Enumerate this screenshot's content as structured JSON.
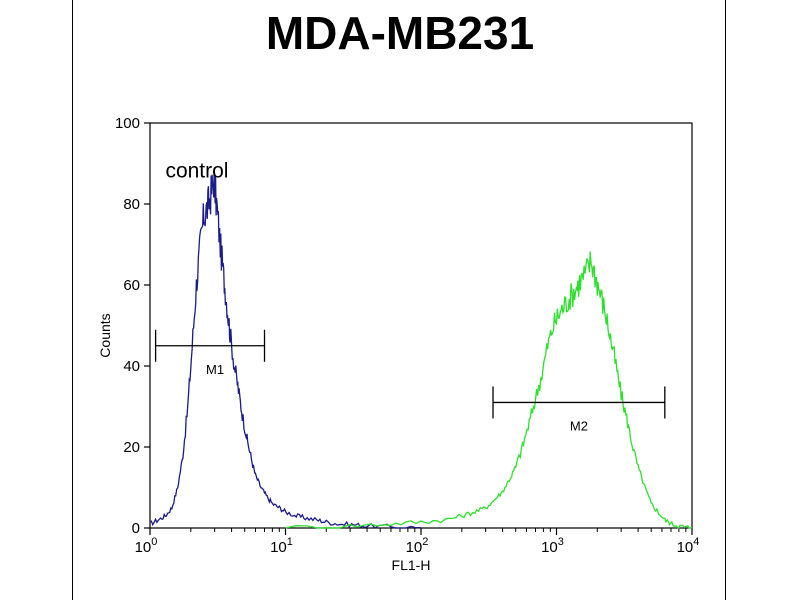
{
  "title": "MDA-MB231",
  "chart_data": {
    "type": "line",
    "title": "MDA-MB231",
    "xlabel": "FL1-H",
    "ylabel": "Counts",
    "xscale": "log",
    "xlim": [
      1,
      10000
    ],
    "ylim": [
      0,
      100
    ],
    "yticks": [
      0,
      20,
      40,
      60,
      80,
      100
    ],
    "xticks": [
      {
        "value": 1,
        "base": "10",
        "exp": "0"
      },
      {
        "value": 10,
        "base": "10",
        "exp": "1"
      },
      {
        "value": 100,
        "base": "10",
        "exp": "2"
      },
      {
        "value": 1000,
        "base": "10",
        "exp": "3"
      },
      {
        "value": 10000,
        "base": "10",
        "exp": "4"
      }
    ],
    "grid": false,
    "legend": "none",
    "annotations": [
      {
        "text": "control",
        "x": 1.3,
        "y": 88
      }
    ],
    "markers": [
      {
        "label": "M1",
        "x_start": 1.1,
        "x_end": 7.0,
        "y": 45
      },
      {
        "label": "M2",
        "x_start": 340,
        "x_end": 6300,
        "y": 31
      }
    ],
    "series": [
      {
        "color": "#1b1b8a",
        "x": [
          1.0,
          1.15,
          1.3,
          1.45,
          1.6,
          1.75,
          1.9,
          2.05,
          2.2,
          2.35,
          2.5,
          2.65,
          2.8,
          2.95,
          3.1,
          3.3,
          3.5,
          3.7,
          3.9,
          4.2,
          4.5,
          4.8,
          5.2,
          5.6,
          6.0,
          6.6,
          7.2,
          8.0,
          9.0,
          10.0,
          12.0,
          14.0,
          17.0,
          20.0,
          25.0,
          32.0,
          40.0,
          60.0,
          100.0
        ],
        "values": [
          1,
          2,
          3,
          5,
          10,
          18,
          30,
          45,
          60,
          70,
          77,
          79,
          82,
          86,
          80,
          70,
          62,
          55,
          48,
          40,
          34,
          28,
          22,
          17,
          13,
          10,
          8,
          6,
          5,
          4,
          3,
          2.5,
          2,
          1.5,
          1,
          0.8,
          0.5,
          0.3,
          0.1
        ]
      },
      {
        "color": "#2ee02e",
        "x": [
          10.0,
          30.0,
          60.0,
          100.0,
          150.0,
          200.0,
          250.0,
          300.0,
          350.0,
          400.0,
          450.0,
          500.0,
          560.0,
          630.0,
          700.0,
          780.0,
          860.0,
          950.0,
          1050.0,
          1150.0,
          1260.0,
          1380.0,
          1500.0,
          1650.0,
          1800.0,
          1950.0,
          2100.0,
          2300.0,
          2500.0,
          2750.0,
          3000.0,
          3300.0,
          3600.0,
          4000.0,
          4500.0,
          5000.0,
          5600.0,
          6300.0,
          7100.0,
          8000.0,
          9000.0,
          10000.0
        ],
        "values": [
          0.1,
          0.5,
          1,
          1.5,
          2,
          3,
          4,
          5,
          7,
          9,
          12,
          15,
          20,
          26,
          32,
          38,
          45,
          50,
          53,
          55,
          57,
          59,
          61,
          63,
          66,
          62,
          58,
          53,
          47,
          40,
          33,
          27,
          21,
          15,
          10,
          6,
          4,
          2,
          1,
          0.5,
          0.2,
          0.1
        ]
      }
    ]
  }
}
